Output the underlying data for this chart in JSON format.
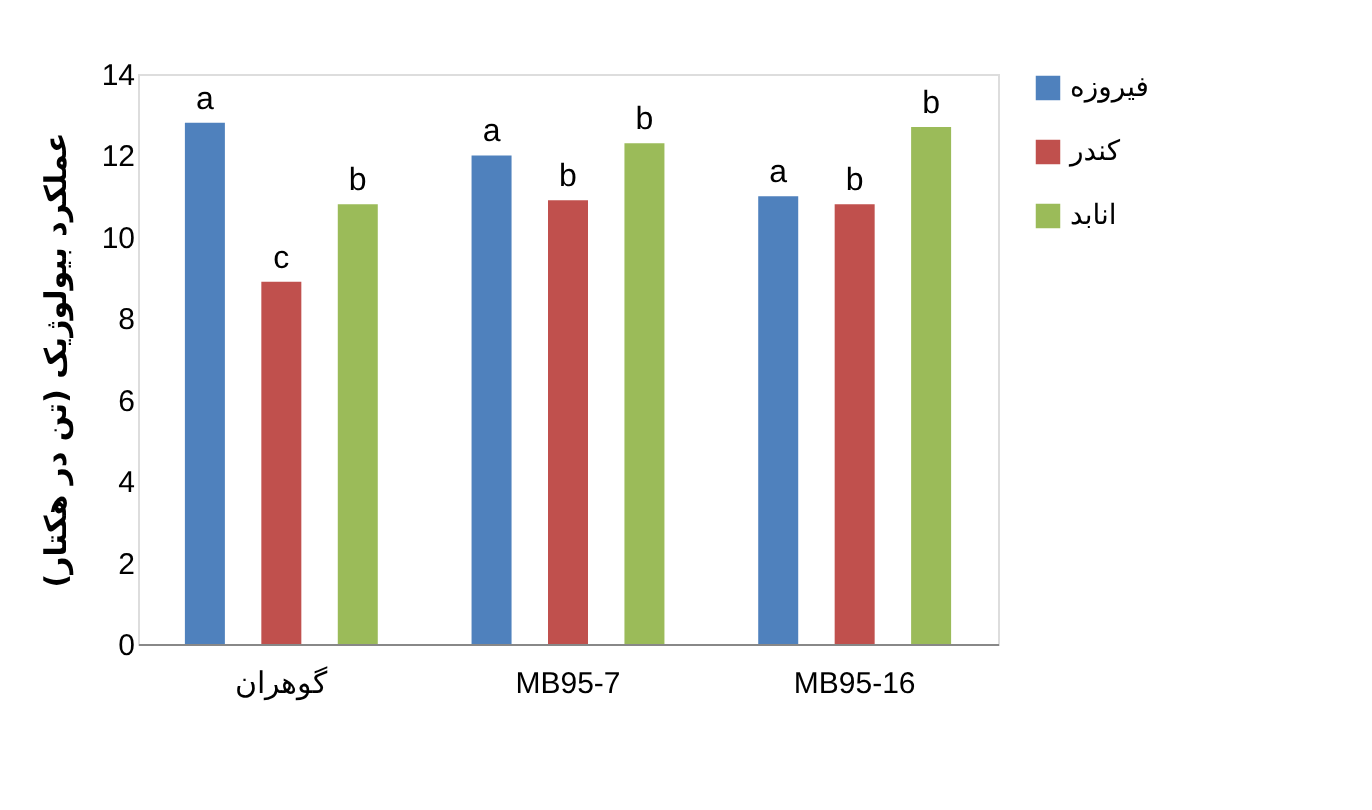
{
  "chart_data": {
    "type": "bar",
    "ylabel": "عملکرد بیولوژیک (تن در هکتار)",
    "categories": [
      "گوهران",
      "MB95-7",
      "MB95-16"
    ],
    "series": [
      {
        "name": "فیروزه",
        "color": "#4f81bd",
        "values": [
          12.8,
          12.0,
          11.0
        ],
        "value_labels": [
          "a",
          "a",
          "a"
        ]
      },
      {
        "name": "کندر",
        "color": "#c0504d",
        "values": [
          8.9,
          10.9,
          10.8
        ],
        "value_labels": [
          "c",
          "b",
          "b"
        ]
      },
      {
        "name": "انابد",
        "color": "#9bbb59",
        "values": [
          10.8,
          12.3,
          12.7
        ],
        "value_labels": [
          "b",
          "b",
          "b"
        ]
      }
    ],
    "ylim": [
      0,
      14
    ],
    "yticks": [
      0,
      2,
      4,
      6,
      8,
      10,
      12,
      14
    ],
    "grid": false,
    "legend": "right"
  }
}
